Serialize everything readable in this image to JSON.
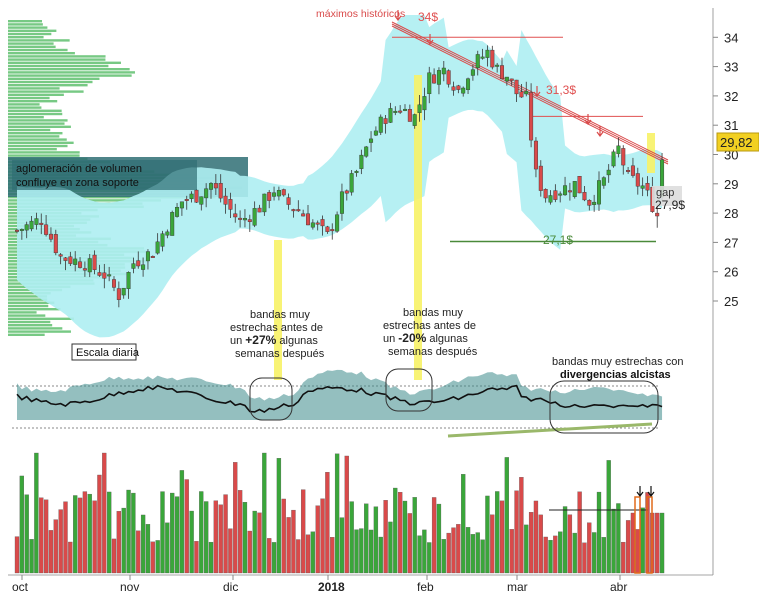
{
  "chart_data": {
    "type": "candlestick",
    "timeframe_label": "Escala diaria",
    "y_axis": {
      "ticks": [
        25,
        26,
        27,
        28,
        29,
        30,
        31,
        32,
        33,
        34
      ],
      "ylim": [
        24.3,
        34.5
      ]
    },
    "x_axis": {
      "ticks": [
        {
          "label": "oct",
          "bold": false
        },
        {
          "label": "nov",
          "bold": false
        },
        {
          "label": "dic",
          "bold": false
        },
        {
          "label": "2018",
          "bold": true
        },
        {
          "label": "feb",
          "bold": false
        },
        {
          "label": "mar",
          "bold": false
        },
        {
          "label": "abr",
          "bold": false
        }
      ]
    },
    "last_price": {
      "value": "29,82",
      "color": "#f2d022"
    },
    "gap": {
      "label": "gap",
      "value": "27,9$"
    },
    "levels": [
      {
        "label": "34$",
        "value": 34.0,
        "color": "#e05050"
      },
      {
        "label": "31,3$",
        "value": 31.3,
        "color": "#e05050"
      },
      {
        "label": "27,1$",
        "value": 27.1,
        "color": "#4a8a3a"
      }
    ],
    "annotations": {
      "all_time_high": "máximos históricos",
      "volume_cluster": [
        "aglomeración de volumen",
        "confluye en zona soporte"
      ],
      "note_up": {
        "pre": [
          "bandas muy",
          "estrechas antes de",
          "un"
        ],
        "pct": "+27%",
        "mid": "algunas",
        "post": "semanas después"
      },
      "note_down": {
        "pre": [
          "bandas muy",
          "estrechas antes de",
          "un"
        ],
        "pct": "-20%",
        "mid": "algunas",
        "post": "semanas después"
      },
      "note_divergence": {
        "line1": "bandas muy estrechas con",
        "line2": "divergencias alcistas"
      }
    },
    "colors": {
      "up": "#3aa63a",
      "down": "#d94a4a",
      "band": "#aeeef2",
      "vol_profile": "#5fbf6f",
      "vol_profile_dark": "#2f6e74",
      "band_width": "#3d8a8a",
      "highlight": "#f7f266",
      "trendline": "#d94a4a"
    }
  }
}
